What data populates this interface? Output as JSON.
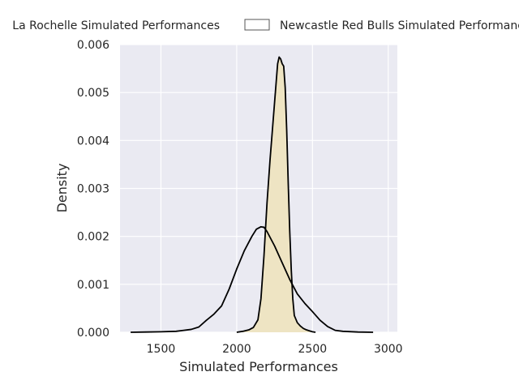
{
  "chart_data": {
    "type": "area",
    "xlabel": "Simulated Performances",
    "ylabel": "Density",
    "xlim": [
      1230,
      3060
    ],
    "ylim": [
      0,
      0.006
    ],
    "xticks": [
      1500,
      2000,
      2500,
      3000
    ],
    "xtick_labels": [
      "1500",
      "2000",
      "2500",
      "3000"
    ],
    "yticks": [
      0,
      0.001,
      0.002,
      0.003,
      0.004,
      0.005,
      0.006
    ],
    "ytick_labels": [
      "0.000",
      "0.001",
      "0.002",
      "0.003",
      "0.004",
      "0.005",
      "0.006"
    ],
    "grid": true,
    "legend_position": "top",
    "series": [
      {
        "name": "La Rochelle Simulated Performances",
        "fill": "#eee4c3",
        "line": "#000000",
        "x": [
          2000,
          2040,
          2080,
          2110,
          2140,
          2160,
          2180,
          2200,
          2220,
          2230,
          2240,
          2250,
          2260,
          2270,
          2280,
          2290,
          2300,
          2310,
          2320,
          2330,
          2340,
          2350,
          2360,
          2370,
          2380,
          2400,
          2420,
          2440,
          2460,
          2480,
          2500,
          2520
        ],
        "y": [
          0,
          2e-05,
          5e-05,
          0.0001,
          0.00026,
          0.0007,
          0.0016,
          0.0027,
          0.0036,
          0.004,
          0.0044,
          0.0048,
          0.0052,
          0.0056,
          0.00574,
          0.0057,
          0.0056,
          0.00555,
          0.0051,
          0.0042,
          0.0031,
          0.0021,
          0.0013,
          0.0007,
          0.00035,
          0.0002,
          0.00013,
          8e-05,
          5e-05,
          3e-05,
          1e-05,
          0
        ]
      },
      {
        "name": "Newcastle Red Bulls Simulated Performances",
        "fill": "none",
        "line": "#000000",
        "x": [
          1300,
          1400,
          1500,
          1600,
          1650,
          1700,
          1750,
          1800,
          1850,
          1900,
          1950,
          2000,
          2050,
          2100,
          2130,
          2160,
          2180,
          2200,
          2250,
          2300,
          2350,
          2400,
          2450,
          2500,
          2550,
          2600,
          2650,
          2700,
          2800,
          2900
        ],
        "y": [
          0,
          5e-06,
          1e-05,
          2e-05,
          4e-05,
          6e-05,
          0.00011,
          0.00025,
          0.00038,
          0.00055,
          0.0009,
          0.00132,
          0.0017,
          0.002,
          0.00215,
          0.0022,
          0.00219,
          0.0021,
          0.0018,
          0.00145,
          0.0011,
          0.0008,
          0.0006,
          0.00043,
          0.00025,
          0.00012,
          4e-05,
          2e-05,
          5e-06,
          0
        ]
      }
    ]
  }
}
